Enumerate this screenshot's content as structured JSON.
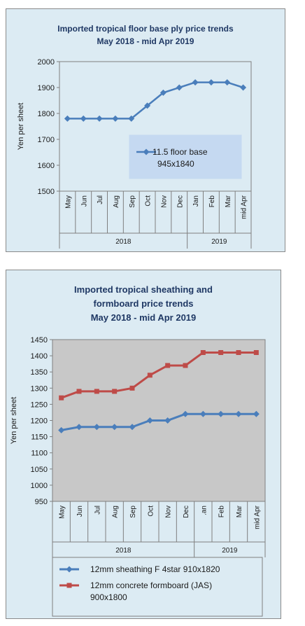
{
  "chart_data": [
    {
      "type": "line",
      "title": "Imported tropical floor base ply price trends",
      "subtitle": "May 2018 - mid Apr 2019",
      "ylabel": "Yen per sheet",
      "ylim": [
        1500,
        2000
      ],
      "yticks": [
        1500,
        1600,
        1700,
        1800,
        1900,
        2000
      ],
      "categories": [
        "May",
        "Jun",
        "Jul",
        "Aug",
        "Sep",
        "Oct",
        "Nov",
        "Dec",
        "Jan",
        "Feb",
        "Mar",
        "mid Apr"
      ],
      "year_groups": [
        {
          "label": "2018",
          "count": 8
        },
        {
          "label": "2019",
          "count": 4
        }
      ],
      "legend_position": "center-right",
      "series": [
        {
          "name": "11.5 floor base 945x1840",
          "name_lines": [
            "11.5 floor base",
            "945x1840"
          ],
          "color": "#4a7ebb",
          "marker": "diamond",
          "values": [
            1780,
            1780,
            1780,
            1780,
            1780,
            1830,
            1880,
            1900,
            1920,
            1920,
            1920,
            1900
          ]
        }
      ]
    },
    {
      "type": "line",
      "title": "Imported tropical sheathing and formboard price trends",
      "title_lines": [
        "Imported tropical sheathing and",
        "formboard price trends",
        "May 2018 - mid Apr 2019"
      ],
      "ylabel": "Yen per sheet",
      "ylim": [
        950,
        1450
      ],
      "yticks": [
        950,
        1000,
        1050,
        1100,
        1150,
        1200,
        1250,
        1300,
        1350,
        1400,
        1450
      ],
      "categories": [
        "May",
        "Jun",
        "Jul",
        "Aug",
        "Sep",
        "Oct",
        "Nov",
        "Dec",
        ".an",
        "Feb",
        "Mar",
        "mid Apr"
      ],
      "year_groups": [
        {
          "label": "2018",
          "count": 8
        },
        {
          "label": "2019",
          "count": 4
        }
      ],
      "grid": true,
      "legend_position": "bottom",
      "series": [
        {
          "name": "12mm sheathing F 4star 910x1820",
          "name_lines": [
            "12mm sheathing F 4star 910x1820"
          ],
          "color": "#4a7ebb",
          "marker": "diamond",
          "values": [
            1170,
            1180,
            1180,
            1180,
            1180,
            1200,
            1200,
            1220,
            1220,
            1220,
            1220,
            1220
          ]
        },
        {
          "name": "12mm concrete formboard (JAS) 900x1800",
          "name_lines": [
            "12mm concrete formboard (JAS)",
            "900x1800"
          ],
          "color": "#be4b48",
          "marker": "square",
          "values": [
            1270,
            1290,
            1290,
            1290,
            1300,
            1340,
            1370,
            1370,
            1410,
            1410,
            1410,
            1410
          ]
        }
      ]
    }
  ]
}
